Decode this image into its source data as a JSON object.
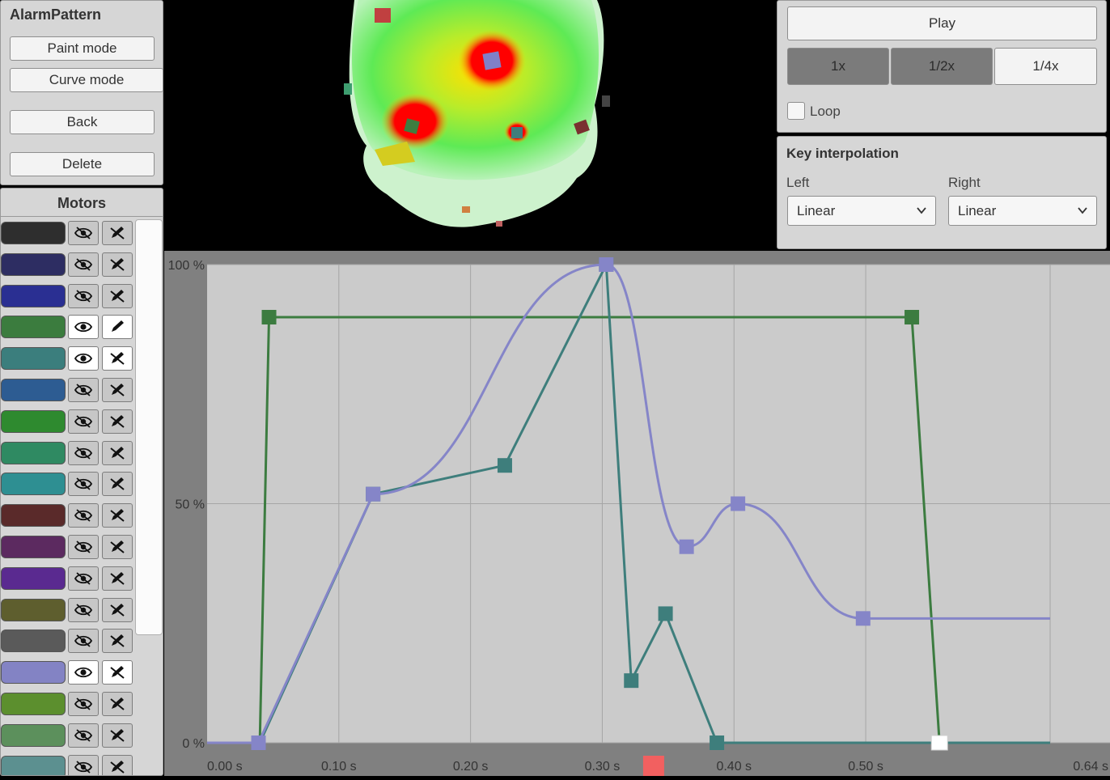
{
  "pattern": {
    "name": "AlarmPattern",
    "buttons": {
      "paint_mode": "Paint mode",
      "curve_mode": "Curve mode",
      "back": "Back",
      "delete": "Delete"
    }
  },
  "motors": {
    "header": "Motors",
    "items": [
      {
        "color": "#2e2e2e",
        "visible": false,
        "editing": false
      },
      {
        "color": "#2d2d62",
        "visible": false,
        "editing": false
      },
      {
        "color": "#2a2f92",
        "visible": false,
        "editing": false
      },
      {
        "color": "#3b7c3e",
        "visible": true,
        "editing": true
      },
      {
        "color": "#3b7e7d",
        "visible": true,
        "editing": false
      },
      {
        "color": "#2d5c92",
        "visible": false,
        "editing": false
      },
      {
        "color": "#2e8a2f",
        "visible": false,
        "editing": false
      },
      {
        "color": "#2f8a62",
        "visible": false,
        "editing": false
      },
      {
        "color": "#2e8f92",
        "visible": false,
        "editing": false
      },
      {
        "color": "#5a2a2a",
        "visible": false,
        "editing": false
      },
      {
        "color": "#5c2a60",
        "visible": false,
        "editing": false
      },
      {
        "color": "#5a2a90",
        "visible": false,
        "editing": false
      },
      {
        "color": "#5e5e2e",
        "visible": false,
        "editing": false
      },
      {
        "color": "#5a5a5a",
        "visible": false,
        "editing": false
      },
      {
        "color": "#8383c4",
        "visible": true,
        "editing": false
      },
      {
        "color": "#5c8f2e",
        "visible": false,
        "editing": false
      },
      {
        "color": "#5c905c",
        "visible": false,
        "editing": false
      },
      {
        "color": "#5c9090",
        "visible": false,
        "editing": false
      }
    ]
  },
  "playback": {
    "play_label": "Play",
    "speeds": [
      {
        "label": "1x",
        "active": true
      },
      {
        "label": "1/2x",
        "active": true
      },
      {
        "label": "1/4x",
        "active": false
      }
    ],
    "loop_label": "Loop",
    "loop_checked": false
  },
  "interpolation": {
    "title": "Key interpolation",
    "left_label": "Left",
    "right_label": "Right",
    "left_value": "Linear",
    "right_value": "Linear"
  },
  "chart_data": {
    "type": "line",
    "x_unit": "s",
    "xlim": [
      0.0,
      0.64
    ],
    "ylim": [
      0,
      100
    ],
    "x_ticks": [
      "0.00 s",
      "0.10 s",
      "0.20 s",
      "0.30 s",
      "0.40 s",
      "0.50 s",
      "0.64 s"
    ],
    "x_tick_values": [
      0.0,
      0.1,
      0.2,
      0.3,
      0.4,
      0.5,
      0.64
    ],
    "y_ticks": [
      "0 %",
      "50 %",
      "100 %"
    ],
    "y_tick_values": [
      0,
      50,
      100
    ],
    "grid": true,
    "playhead_time": 0.339,
    "series": [
      {
        "color": "#3c7c40",
        "interp": "linear",
        "points": [
          [
            0.0,
            0
          ],
          [
            0.04,
            0
          ],
          [
            0.047,
            89
          ],
          [
            0.535,
            89
          ],
          [
            0.556,
            0
          ],
          [
            0.64,
            0
          ]
        ],
        "keys": [
          [
            0.047,
            89
          ],
          [
            0.535,
            89
          ]
        ]
      },
      {
        "color": "#3e7e7c",
        "interp": "linear",
        "points": [
          [
            0.0,
            0
          ],
          [
            0.04,
            0
          ],
          [
            0.126,
            52
          ],
          [
            0.226,
            58
          ],
          [
            0.303,
            100
          ],
          [
            0.322,
            13
          ],
          [
            0.348,
            27
          ],
          [
            0.387,
            0
          ],
          [
            0.64,
            0
          ]
        ],
        "keys": [
          [
            0.126,
            52
          ],
          [
            0.226,
            58
          ],
          [
            0.303,
            100
          ],
          [
            0.322,
            13
          ],
          [
            0.348,
            27
          ],
          [
            0.387,
            0
          ]
        ]
      },
      {
        "color": "#8585c8",
        "interp": "smooth",
        "points": [
          [
            0.0,
            0
          ],
          [
            0.039,
            0
          ],
          [
            0.126,
            52
          ],
          [
            0.303,
            100
          ],
          [
            0.364,
            41
          ],
          [
            0.403,
            50
          ],
          [
            0.498,
            26
          ],
          [
            0.64,
            26
          ]
        ],
        "keys": [
          [
            0.039,
            0
          ],
          [
            0.126,
            52
          ],
          [
            0.303,
            100
          ],
          [
            0.364,
            41
          ],
          [
            0.403,
            50
          ],
          [
            0.498,
            26
          ]
        ]
      }
    ]
  }
}
